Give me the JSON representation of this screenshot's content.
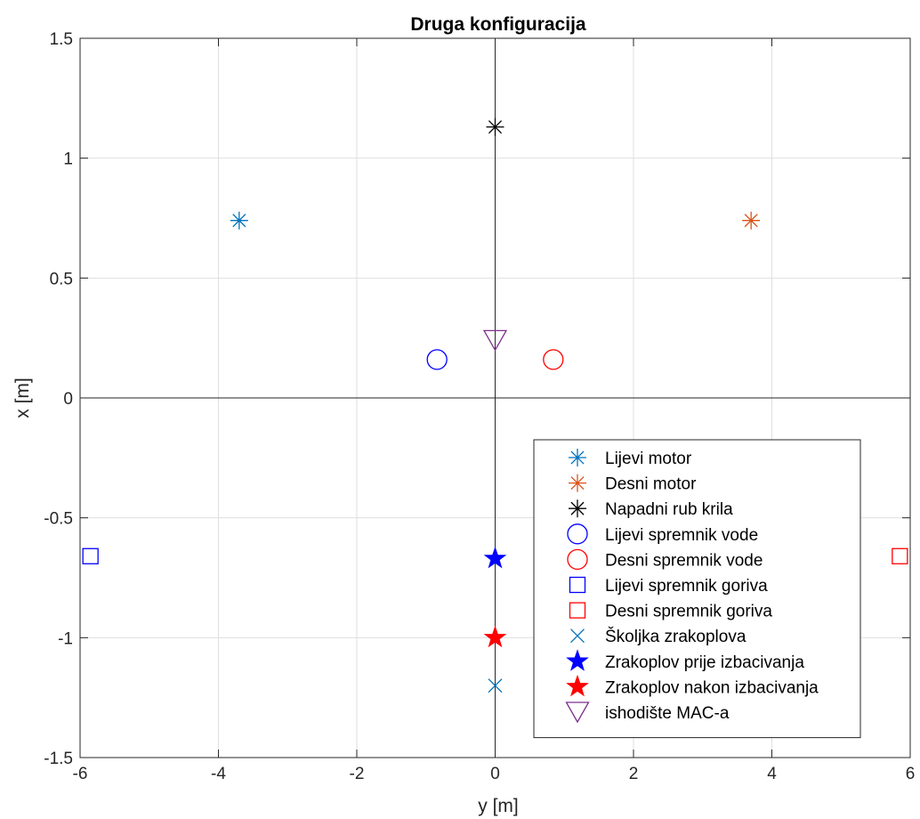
{
  "chart_data": {
    "type": "scatter",
    "title": "Druga konfiguracija",
    "xlabel": "y [m]",
    "ylabel": "x [m]",
    "xlim": [
      -6,
      6
    ],
    "ylim": [
      -1.5,
      1.5
    ],
    "x_ticks": [
      -6,
      -4,
      -2,
      0,
      2,
      4,
      6
    ],
    "x_tick_labels": [
      "-6",
      "-4",
      "-2",
      "0",
      "2",
      "4",
      "6"
    ],
    "y_ticks": [
      -1.5,
      -1,
      -0.5,
      0,
      0.5,
      1,
      1.5
    ],
    "y_tick_labels": [
      "-1.5",
      "-1",
      "-0.5",
      "0",
      "0.5",
      "1",
      "1.5"
    ],
    "grid": true,
    "zero_lines": true,
    "legend_position": "bottom-right",
    "series": [
      {
        "name": "Lijevi motor",
        "marker": "asterisk",
        "color": "#0072BD",
        "x": -3.7,
        "y": 0.74
      },
      {
        "name": "Desni motor",
        "marker": "asterisk",
        "color": "#D95319",
        "x": 3.7,
        "y": 0.74
      },
      {
        "name": "Napadni rub krila",
        "marker": "asterisk",
        "color": "#000000",
        "x": 0,
        "y": 1.13
      },
      {
        "name": "Lijevi spremnik vode",
        "marker": "circle",
        "color": "#0000FF",
        "x": -0.84,
        "y": 0.16
      },
      {
        "name": "Desni spremnik vode",
        "marker": "circle",
        "color": "#FF0000",
        "x": 0.84,
        "y": 0.16
      },
      {
        "name": "Lijevi spremnik goriva",
        "marker": "square",
        "color": "#0000FF",
        "x": -5.85,
        "y": -0.66
      },
      {
        "name": "Desni spremnik goriva",
        "marker": "square",
        "color": "#FF0000",
        "x": 5.85,
        "y": -0.66
      },
      {
        "name": "Školjka zrakoplova",
        "marker": "cross",
        "color": "#0072BD",
        "x": 0,
        "y": -1.2
      },
      {
        "name": "Zrakoplov prije izbacivanja",
        "marker": "star",
        "color": "#0000FF",
        "x": 0,
        "y": -0.67
      },
      {
        "name": "Zrakoplov nakon izbacivanja",
        "marker": "star",
        "color": "#FF0000",
        "x": 0,
        "y": -1.0
      },
      {
        "name": "ishodište MAC-a",
        "marker": "triangle-down",
        "color": "#7E2F8E",
        "x": 0,
        "y": 0.24
      }
    ]
  }
}
